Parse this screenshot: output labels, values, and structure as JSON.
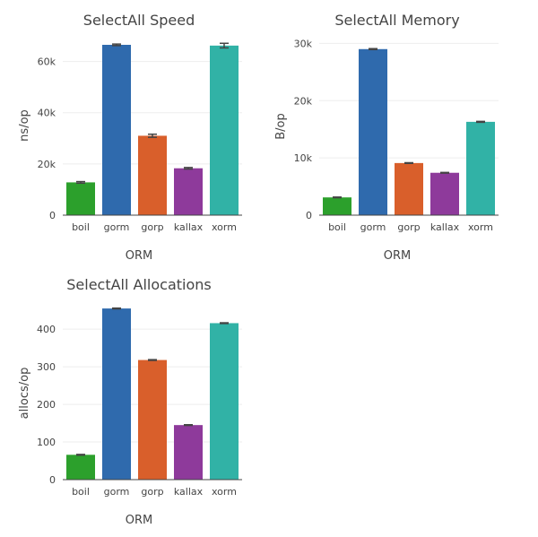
{
  "chart_data": [
    {
      "type": "bar",
      "title": "SelectAll Speed",
      "xlabel": "ORM",
      "ylabel": "ns/op",
      "ylim": [
        0,
        70000
      ],
      "yticks": [
        0,
        20000,
        40000,
        60000
      ],
      "ytick_labels": [
        "0",
        "20k",
        "40k",
        "60k"
      ],
      "categories": [
        "boil",
        "gorm",
        "gorp",
        "kallax",
        "xorm"
      ],
      "values": [
        12800,
        66500,
        31000,
        18300,
        66200
      ],
      "errors": [
        300,
        300,
        600,
        300,
        900
      ],
      "colors": [
        "#2ca02c",
        "#2f6aad",
        "#d95f2b",
        "#8e3a9b",
        "#31b2a6"
      ],
      "grid": true
    },
    {
      "type": "bar",
      "title": "SelectAll Memory",
      "xlabel": "ORM",
      "ylabel": "B/op",
      "ylim": [
        0,
        31000
      ],
      "yticks": [
        0,
        10000,
        20000,
        30000
      ],
      "ytick_labels": [
        "0",
        "10k",
        "20k",
        "30k"
      ],
      "categories": [
        "boil",
        "gorm",
        "gorp",
        "kallax",
        "xorm"
      ],
      "values": [
        3100,
        29000,
        9100,
        7400,
        16300
      ],
      "errors": [
        60,
        80,
        60,
        60,
        80
      ],
      "colors": [
        "#2ca02c",
        "#2f6aad",
        "#d95f2b",
        "#8e3a9b",
        "#31b2a6"
      ],
      "grid": true
    },
    {
      "type": "bar",
      "title": "SelectAll Allocations",
      "xlabel": "ORM",
      "ylabel": "allocs/op",
      "ylim": [
        0,
        460
      ],
      "yticks": [
        0,
        100,
        200,
        300,
        400
      ],
      "ytick_labels": [
        "0",
        "100",
        "200",
        "300",
        "400"
      ],
      "categories": [
        "boil",
        "gorm",
        "gorp",
        "kallax",
        "xorm"
      ],
      "values": [
        66,
        455,
        318,
        145,
        416
      ],
      "errors": [
        1,
        1,
        1,
        1,
        1
      ],
      "colors": [
        "#2ca02c",
        "#2f6aad",
        "#d95f2b",
        "#8e3a9b",
        "#31b2a6"
      ],
      "grid": true
    }
  ]
}
